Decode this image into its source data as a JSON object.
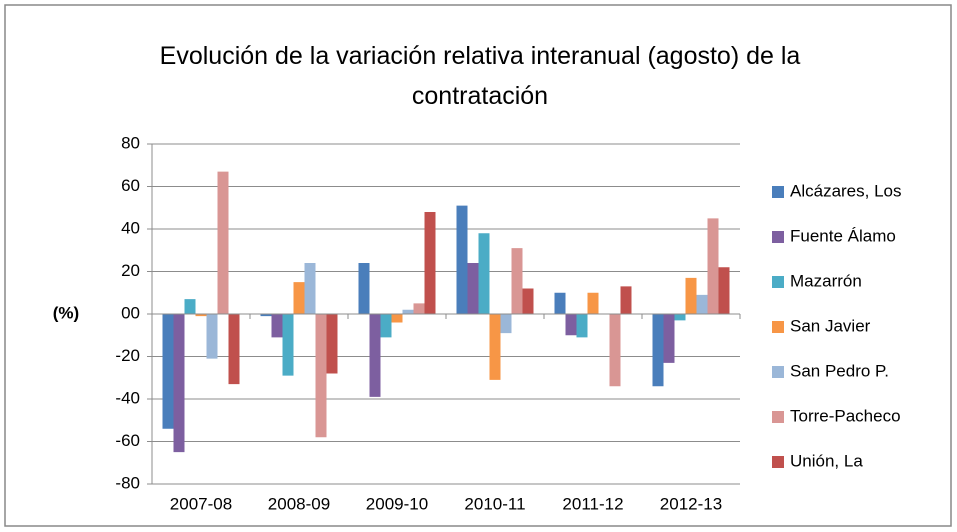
{
  "chart_data": {
    "type": "bar",
    "title": "Evolución de la variación relativa interanual  (agosto) de la contratación",
    "ylabel": "(%)",
    "categories": [
      "2007-08",
      "2008-09",
      "2009-10",
      "2010-11",
      "2011-12",
      "2012-13"
    ],
    "series": [
      {
        "name": "Alcázares, Los",
        "color": "#4a7ebb",
        "values": [
          -54,
          -1,
          24,
          51,
          10,
          -34
        ]
      },
      {
        "name": "Fuente Álamo",
        "color": "#7d5fa0",
        "values": [
          -65,
          -11,
          -39,
          24,
          -10,
          -23
        ]
      },
      {
        "name": "Mazarrón",
        "color": "#4bacc6",
        "values": [
          7,
          -29,
          -11,
          38,
          -11,
          -3
        ]
      },
      {
        "name": "San Javier",
        "color": "#f79646",
        "values": [
          -1,
          15,
          -4,
          -31,
          10,
          17
        ]
      },
      {
        "name": "San Pedro P.",
        "color": "#9bb7d8",
        "values": [
          -21,
          24,
          2,
          -9,
          0,
          9
        ]
      },
      {
        "name": "Torre-Pacheco",
        "color": "#d99694",
        "values": [
          67,
          -58,
          5,
          31,
          -34,
          45
        ]
      },
      {
        "name": "Unión, La",
        "color": "#c0504d",
        "values": [
          -33,
          -28,
          48,
          12,
          13,
          22
        ]
      }
    ],
    "ylim": [
      -80,
      80
    ],
    "yticks": [
      -80,
      -60,
      -40,
      -20,
      {
        "value": 0,
        "label": "00"
      },
      20,
      40,
      60,
      80
    ],
    "grid": true,
    "legend": "right"
  }
}
